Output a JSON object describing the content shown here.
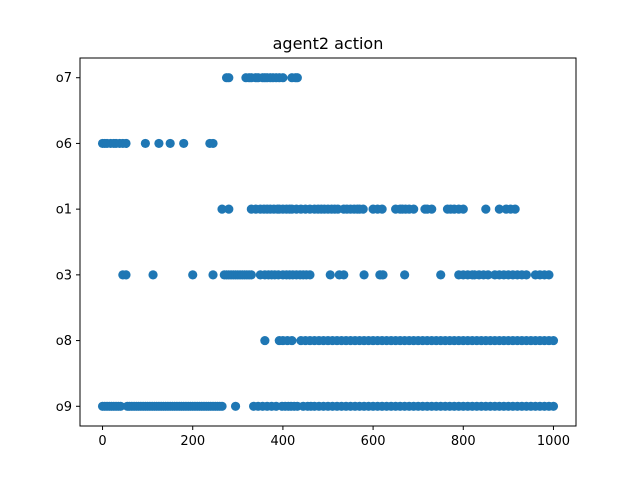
{
  "chart_data": {
    "type": "scatter",
    "title": "agent2 action",
    "xlabel": "",
    "ylabel": "",
    "xlim": [
      -50,
      1050
    ],
    "x_ticks": [
      0,
      200,
      400,
      600,
      800,
      1000
    ],
    "categories": [
      "o9",
      "o8",
      "o3",
      "o1",
      "o6",
      "o7"
    ],
    "grid": false,
    "marker_color": "#1f77b4",
    "series": [
      {
        "points": [
          {
            "category": "o7",
            "x": [
              275,
              280,
              318,
              325,
              330,
              340,
              345,
              355,
              360,
              365,
              372,
              378,
              385,
              392,
              400,
              420,
              428,
              432
            ]
          },
          {
            "category": "o6",
            "x": [
              0,
              5,
              10,
              18,
              25,
              30,
              38,
              45,
              52,
              95,
              125,
              150,
              180,
              238,
              245
            ]
          },
          {
            "category": "o1",
            "x": [
              265,
              280,
              330,
              340,
              350,
              358,
              365,
              372,
              380,
              388,
              392,
              400,
              408,
              415,
              420,
              430,
              440,
              450,
              460,
              470,
              478,
              485,
              492,
              500,
              508,
              515,
              522,
              535,
              542,
              550,
              558,
              565,
              570,
              578,
              600,
              610,
              620,
              650,
              660,
              665,
              672,
              680,
              690,
              715,
              720,
              730,
              765,
              772,
              780,
              790,
              800,
              850,
              880,
              895,
              905,
              915
            ]
          },
          {
            "category": "o3",
            "x": [
              45,
              52,
              112,
              200,
              245,
              270,
              275,
              280,
              285,
              290,
              295,
              300,
              305,
              310,
              315,
              320,
              325,
              330,
              350,
              360,
              368,
              375,
              382,
              390,
              400,
              408,
              415,
              422,
              430,
              438,
              445,
              452,
              460,
              505,
              525,
              535,
              580,
              615,
              622,
              670,
              750,
              790,
              800,
              810,
              820,
              825,
              835,
              845,
              855,
              870,
              880,
              890,
              900,
              910,
              920,
              930,
              940,
              960,
              970,
              980,
              990
            ]
          },
          {
            "category": "o8",
            "x": [
              360,
              392,
              400,
              410,
              420,
              440,
              450,
              460,
              470,
              480,
              490,
              500,
              510,
              520,
              530,
              540,
              550,
              560,
              570,
              580,
              590,
              600,
              610,
              620,
              630,
              640,
              650,
              660,
              670,
              680,
              690,
              700,
              710,
              720,
              730,
              740,
              750,
              760,
              770,
              780,
              790,
              800,
              810,
              820,
              830,
              840,
              850,
              860,
              870,
              880,
              890,
              900,
              910,
              920,
              930,
              940,
              950,
              960,
              970,
              980,
              990,
              1000
            ]
          },
          {
            "category": "o9",
            "x": [
              0,
              5,
              10,
              15,
              20,
              25,
              30,
              35,
              40,
              55,
              60,
              65,
              70,
              75,
              80,
              85,
              90,
              95,
              100,
              105,
              110,
              115,
              120,
              125,
              130,
              135,
              140,
              145,
              150,
              155,
              160,
              165,
              170,
              175,
              180,
              185,
              190,
              195,
              200,
              205,
              210,
              215,
              220,
              225,
              230,
              235,
              240,
              245,
              250,
              255,
              260,
              265,
              295,
              335,
              345,
              355,
              365,
              375,
              385,
              398,
              405,
              412,
              418,
              425,
              432,
              445,
              455,
              462,
              470,
              480,
              490,
              500,
              510,
              520,
              530,
              540,
              550,
              560,
              570,
              580,
              590,
              600,
              610,
              620,
              630,
              640,
              650,
              660,
              670,
              680,
              690,
              700,
              710,
              720,
              730,
              740,
              750,
              760,
              770,
              780,
              790,
              800,
              810,
              820,
              830,
              840,
              850,
              860,
              870,
              880,
              890,
              900,
              910,
              920,
              930,
              940,
              950,
              960,
              970,
              980,
              990,
              1000
            ]
          }
        ]
      }
    ]
  }
}
